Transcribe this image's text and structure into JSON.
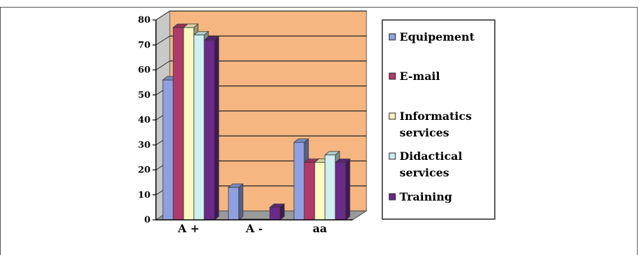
{
  "chart_data": {
    "type": "bar",
    "categories": [
      "A +",
      "A -",
      "aa"
    ],
    "series": [
      {
        "name": "Equipement",
        "values": [
          56,
          13,
          31
        ],
        "color": "#8fa0e0"
      },
      {
        "name": "E-mail",
        "values": [
          77,
          0,
          23
        ],
        "color": "#b23a6a"
      },
      {
        "name": "Informatics services",
        "values": [
          77,
          0,
          23
        ],
        "color": "#fff8c0"
      },
      {
        "name": "Didactical services",
        "values": [
          74,
          0,
          26
        ],
        "color": "#cfeff0"
      },
      {
        "name": "Training",
        "values": [
          72,
          5,
          23
        ],
        "color": "#6a2a88"
      }
    ],
    "legend": [
      "Equipement",
      "E-mail",
      "Informatics services",
      "Didactical services",
      "Training"
    ],
    "legend_lines": [
      [
        "Equipement"
      ],
      [
        "E-mail"
      ],
      [
        "Informatics",
        "services"
      ],
      [
        "Didactical",
        "services"
      ],
      [
        "Training"
      ]
    ],
    "yticks": [
      0,
      10,
      20,
      30,
      40,
      50,
      60,
      70,
      80
    ],
    "ylim": [
      0,
      80
    ],
    "title": "",
    "xlabel": "",
    "ylabel": "",
    "grid": true,
    "legend_position": "right",
    "plot_background": "#f5b681"
  }
}
